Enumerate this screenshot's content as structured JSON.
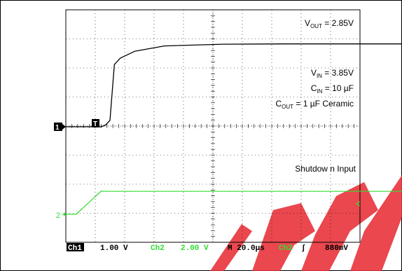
{
  "chart_data": {
    "type": "line",
    "x_unit": "µs",
    "x": [
      -7,
      0,
      17,
      20,
      23,
      26,
      30,
      40,
      60,
      100,
      140,
      180,
      233
    ],
    "series": [
      {
        "name": "Ch1",
        "color": "#000000",
        "values": [
          0.0,
          0.0,
          0.0,
          0.06,
          0.22,
          2.14,
          2.36,
          2.6,
          2.78,
          2.84,
          2.85,
          2.85,
          2.85
        ]
      },
      {
        "name": "Ch2",
        "color": "#33dd33",
        "values": [
          0.0,
          0.0,
          1.59,
          1.58,
          1.58,
          1.58,
          1.58,
          1.58,
          1.58,
          1.58,
          1.58,
          1.58,
          1.58
        ]
      }
    ],
    "annotations": {
      "vout_label": "V",
      "vout_sub": "OUT",
      "vout_value": " = 2.85V",
      "vin_label": "V",
      "vin_sub": "IN",
      "vin_value": " = 3.85V",
      "cin_label": "C",
      "cin_sub": "IN",
      "cin_value": " = 10 µF",
      "cout_label": "C",
      "cout_sub": "OUT",
      "cout_value": " = 1 µF Ceramic",
      "shutdown_label": "Shutdow n Input"
    },
    "markers": {
      "ch1": "1",
      "ch2": "2",
      "trigger": "T"
    },
    "status_bar": {
      "ch1": "Ch1",
      "ch1_scale": "1.00 V",
      "ch2": "Ch2",
      "ch2_scale": "2.00 V",
      "timebase": "M 20.0µs",
      "trig_src": "Ch2",
      "trig_slope": "ʃ",
      "trig_level": "880mV"
    },
    "colors": {
      "trace_ch1": "#000000",
      "trace_ch2": "#33dd33",
      "grid": "#000000",
      "watermark": "#e8343b"
    }
  }
}
